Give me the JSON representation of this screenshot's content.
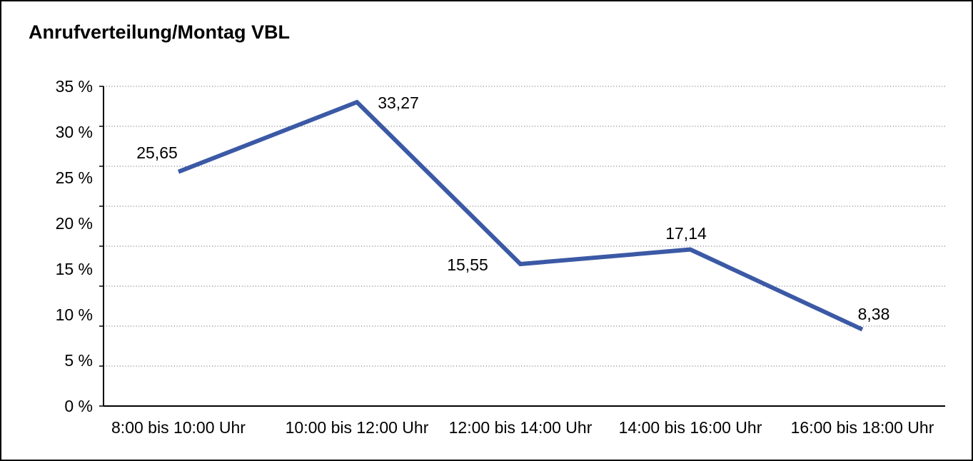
{
  "title": "Anrufverteilung/Montag VBL",
  "chart_data": {
    "type": "line",
    "title": "Anrufverteilung/Montag VBL",
    "categories": [
      "8:00 bis 10:00 Uhr",
      "10:00 bis 12:00 Uhr",
      "12:00 bis 14:00 Uhr",
      "14:00 bis 16:00 Uhr",
      "16:00 bis 18:00 Uhr"
    ],
    "values": [
      25.65,
      33.27,
      15.55,
      17.14,
      8.38
    ],
    "data_labels": [
      "25,65",
      "33,27",
      "15,55",
      "17,14",
      "8,38"
    ],
    "y_tick_labels": [
      "35 %",
      "30 %",
      "25 %",
      "20 %",
      "15 %",
      "10 %",
      "5 %",
      "0 %"
    ],
    "y_tick_values": [
      35,
      30,
      25,
      20,
      15,
      10,
      5,
      0
    ],
    "xlabel": "",
    "ylabel": "",
    "ylim": [
      0,
      35
    ],
    "grid": "horizontal-dotted",
    "legend": "none",
    "series_name": "Montag VBL",
    "line_color": "#3b59a5",
    "axis_color": "#000000",
    "grid_color": "#555555",
    "text_color": "#000000"
  }
}
